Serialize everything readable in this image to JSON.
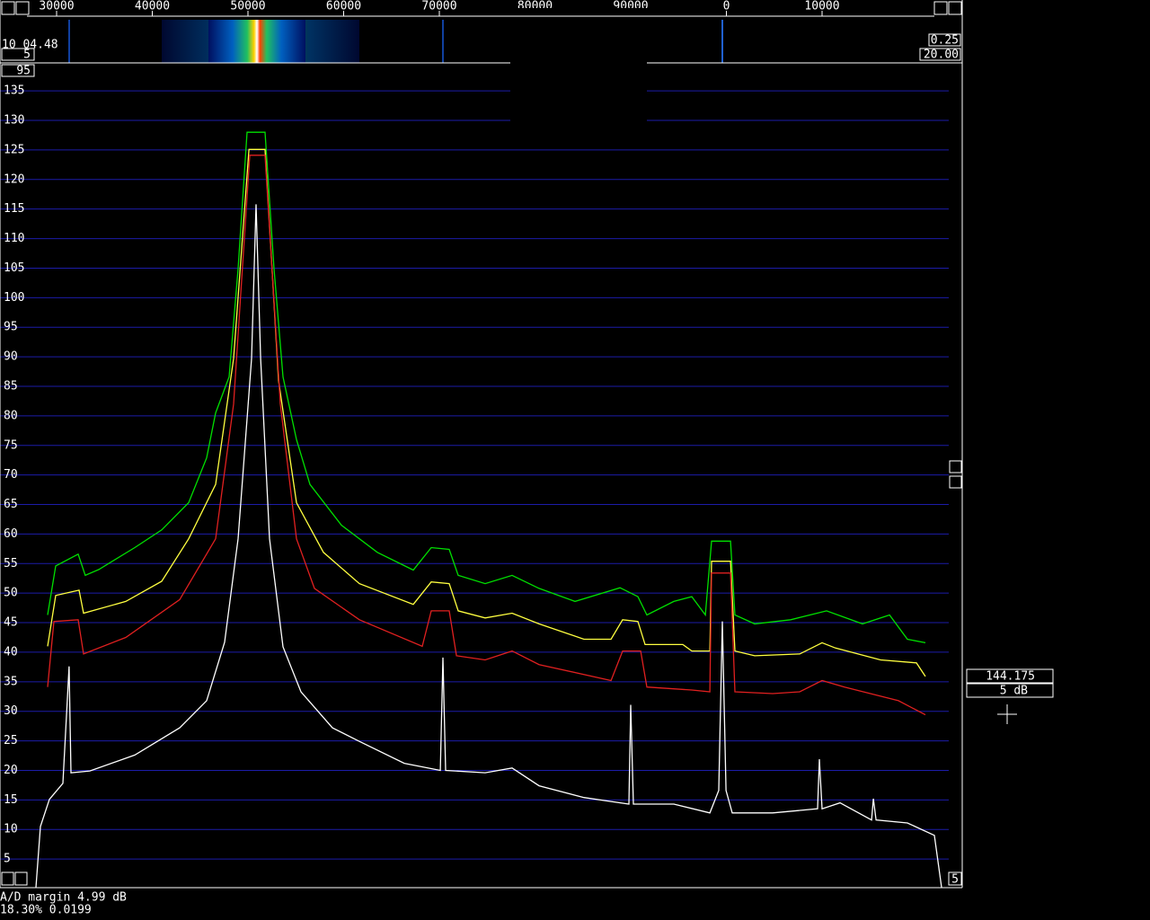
{
  "chart_data": {
    "type": "line",
    "xlim": [
      24085,
      123240
    ],
    "xticks": [
      30000,
      40000,
      50000,
      60000,
      70000,
      80000,
      90000,
      {
        "value": 100000,
        "label": "0"
      },
      {
        "value": 110000,
        "label": "10000"
      }
    ],
    "ylim": [
      0,
      137
    ],
    "yticks": [
      5,
      10,
      15,
      20,
      25,
      30,
      35,
      40,
      45,
      50,
      55,
      60,
      65,
      70,
      75,
      80,
      85,
      90,
      95,
      100,
      105,
      110,
      115,
      120,
      125,
      130,
      135
    ],
    "grid": true,
    "series": [
      {
        "color": "#00e000",
        "x": [
          29060,
          29910,
          32250,
          33000,
          34410,
          38170,
          40990,
          43800,
          45680,
          46620,
          48030,
          48970,
          49910,
          51780,
          52720,
          53660,
          55070,
          56480,
          59770,
          63520,
          67280,
          69160,
          71030,
          71970,
          74790,
          77610,
          80420,
          84180,
          88880,
          90750,
          91690,
          94510,
          96390,
          97800,
          98450,
          100430,
          100890,
          102960,
          106720,
          110470,
          114230,
          117050,
          118920,
          120800
        ],
        "values": [
          46.3,
          54.6,
          56.6,
          53,
          54,
          57.7,
          60.7,
          65.3,
          72.9,
          80.5,
          86.6,
          104.9,
          128,
          128,
          104.9,
          86.6,
          76,
          68.4,
          61.5,
          56.9,
          53.9,
          57.7,
          57.4,
          53,
          51.6,
          53,
          50.8,
          48.6,
          50.9,
          49.4,
          46.3,
          48.6,
          49.4,
          46.3,
          58.8,
          58.8,
          46.3,
          44.8,
          45.5,
          47,
          44.8,
          46.3,
          42.2,
          41.6
        ]
      },
      {
        "color": "#ffff40",
        "x": [
          29060,
          29910,
          32350,
          32820,
          37230,
          40990,
          43800,
          46620,
          48500,
          50100,
          51780,
          53190,
          55070,
          57890,
          61640,
          67280,
          69160,
          71030,
          71970,
          74790,
          77610,
          80420,
          85120,
          87940,
          89160,
          90750,
          91500,
          95450,
          96390,
          98270,
          98450,
          100430,
          100890,
          102960,
          107660,
          110000,
          111410,
          116110,
          119860,
          120800
        ],
        "values": [
          41,
          49.6,
          50.5,
          46.6,
          48.6,
          52,
          59.2,
          68.4,
          89.7,
          125.1,
          125.1,
          86,
          65.3,
          56.9,
          51.6,
          48.1,
          51.9,
          51.6,
          47,
          45.8,
          46.6,
          44.8,
          42.2,
          42.2,
          45.5,
          45.2,
          41.3,
          41.3,
          40.2,
          40.2,
          55.4,
          55.4,
          40.2,
          39.4,
          39.7,
          41.6,
          40.7,
          38.7,
          38.2,
          35.9
        ]
      },
      {
        "color": "#e02020",
        "x": [
          29060,
          29720,
          32250,
          32820,
          37230,
          42860,
          46620,
          48500,
          50190,
          51780,
          53380,
          55070,
          56950,
          61640,
          68220,
          69160,
          71030,
          71790,
          74790,
          77610,
          80420,
          87940,
          89160,
          91040,
          91690,
          96390,
          98270,
          98450,
          100430,
          100890,
          104840,
          107660,
          110000,
          112350,
          117980,
          120800
        ],
        "values": [
          34.1,
          45.2,
          45.5,
          39.7,
          42.5,
          48.9,
          59.2,
          82,
          124.1,
          124.1,
          82,
          59.2,
          50.8,
          45.5,
          41,
          47,
          47,
          39.4,
          38.7,
          40.2,
          37.9,
          35.2,
          40.2,
          40.2,
          34.1,
          33.6,
          33.3,
          53.4,
          53.4,
          33.3,
          33,
          33.3,
          35.2,
          34.1,
          31.8,
          29.4
        ]
      },
      {
        "color": "#ffffff",
        "x": [
          27840,
          28310,
          29250,
          30660,
          31310,
          31500,
          33470,
          38170,
          42860,
          45680,
          47560,
          48970,
          50380,
          50850,
          51320,
          52250,
          53660,
          55540,
          58830,
          61640,
          66340,
          70100,
          70380,
          70660,
          74790,
          77610,
          80420,
          85120,
          89810,
          90000,
          90280,
          94510,
          98270,
          99200,
          99580,
          99960,
          100610,
          104840,
          109530,
          109720,
          110000,
          111880,
          115170,
          115360,
          115640,
          118920,
          121740,
          122490
        ],
        "values": [
          0.2,
          10.5,
          15.1,
          17.8,
          37.6,
          19.6,
          19.9,
          22.6,
          27.2,
          31.8,
          41.7,
          59.2,
          89.7,
          115.8,
          89.7,
          59.2,
          40.9,
          33.3,
          27.2,
          24.9,
          21.2,
          20,
          39.1,
          20,
          19.6,
          20.4,
          17.4,
          15.4,
          14.3,
          31.1,
          14.3,
          14.3,
          12.8,
          16.6,
          45.2,
          16.6,
          12.8,
          12.8,
          13.5,
          21.9,
          13.5,
          14.5,
          11.6,
          15.2,
          11.6,
          11.1,
          9,
          0.2
        ]
      }
    ]
  },
  "ui": {
    "time": "10 04.48",
    "avg": "5",
    "ref": "95",
    "gain": "0.25",
    "span": "20.00",
    "ad_margin": "A/D margin  4.99 dB",
    "status": "18.30% 0.0199",
    "freq": "144.175",
    "step": "5 dB",
    "corner": "5"
  }
}
